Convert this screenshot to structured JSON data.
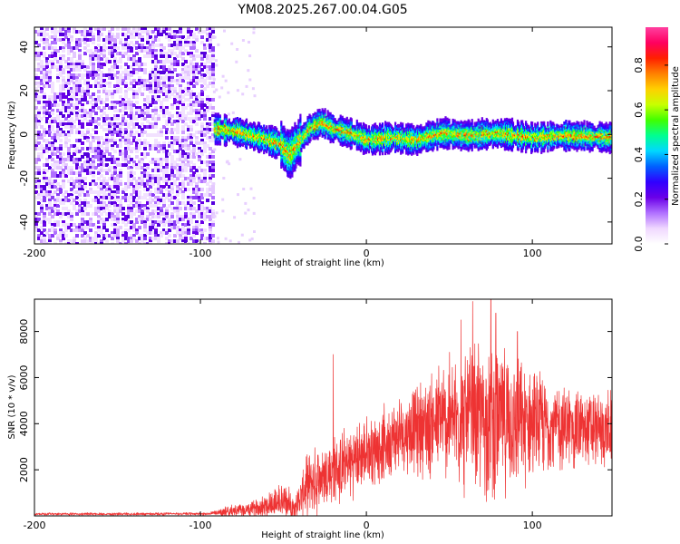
{
  "title": "YM08.2025.267.00.04.G05",
  "chart_data": [
    {
      "type": "heatmap",
      "xlabel": "Height of straight line (km)",
      "ylabel": "Frequency (Hz)",
      "xlim": [
        -200,
        148
      ],
      "ylim": [
        -50,
        49
      ],
      "xticks": [
        -200,
        -100,
        0,
        100
      ],
      "xtick_labels": [
        "-200",
        "-100",
        "0",
        "100"
      ],
      "yticks": [
        -40,
        -20,
        0,
        20,
        40
      ],
      "ytick_labels": [
        "-40",
        "-20",
        "0",
        "20",
        "40"
      ],
      "noise_region": [
        -200,
        -93
      ],
      "ridge": [
        {
          "x": -92,
          "f": 3
        },
        {
          "x": -80,
          "f": 2
        },
        {
          "x": -70,
          "f": 0
        },
        {
          "x": -60,
          "f": -2
        },
        {
          "x": -52,
          "f": -4
        },
        {
          "x": -47,
          "f": -9
        },
        {
          "x": -42,
          "f": -4
        },
        {
          "x": -35,
          "f": 3
        },
        {
          "x": -28,
          "f": 6
        },
        {
          "x": -20,
          "f": 3
        },
        {
          "x": -10,
          "f": 1
        },
        {
          "x": 0,
          "f": -2
        },
        {
          "x": 15,
          "f": -1
        },
        {
          "x": 30,
          "f": -2
        },
        {
          "x": 45,
          "f": 1
        },
        {
          "x": 60,
          "f": 0
        },
        {
          "x": 80,
          "f": 1
        },
        {
          "x": 100,
          "f": -1
        },
        {
          "x": 120,
          "f": 0
        },
        {
          "x": 148,
          "f": -1
        }
      ],
      "colorbar": {
        "label": "Normalized spectral amplitude",
        "range": [
          0.0,
          0.97
        ],
        "ticks": [
          0.0,
          0.2,
          0.4,
          0.6,
          0.8
        ],
        "tick_labels": [
          "0.0",
          "0.2",
          "0.4",
          "0.6",
          "0.8"
        ],
        "colors": [
          "#ffffff",
          "#f0d8ff",
          "#b070ff",
          "#6a00e8",
          "#3000ff",
          "#0060ff",
          "#00d8ff",
          "#00ff90",
          "#40ff00",
          "#c8ff00",
          "#ffd000",
          "#ff8000",
          "#ff2000",
          "#ff0060",
          "#ff40a0"
        ]
      }
    },
    {
      "type": "line",
      "xlabel": "Height of straight line (km)",
      "ylabel": "SNR (10 * v/v)",
      "xlim": [
        -200,
        148
      ],
      "ylim": [
        0,
        9400
      ],
      "xticks": [
        -200,
        -100,
        0,
        100
      ],
      "xtick_labels": [
        "-200",
        "-100",
        "0",
        "100"
      ],
      "yticks": [
        2000,
        4000,
        6000,
        8000
      ],
      "ytick_labels": [
        "2000",
        "4000",
        "6000",
        "8000"
      ],
      "color": "#ee3333",
      "envelope": [
        {
          "x": -200,
          "base": 80,
          "amp": 60
        },
        {
          "x": -95,
          "base": 90,
          "amp": 70
        },
        {
          "x": -85,
          "base": 200,
          "amp": 250
        },
        {
          "x": -70,
          "base": 260,
          "amp": 350
        },
        {
          "x": -60,
          "base": 500,
          "amp": 700
        },
        {
          "x": -50,
          "base": 650,
          "amp": 1000
        },
        {
          "x": -43,
          "base": 350,
          "amp": 600
        },
        {
          "x": -35,
          "base": 1400,
          "amp": 1600
        },
        {
          "x": -20,
          "base": 1900,
          "amp": 1800
        },
        {
          "x": -5,
          "base": 2500,
          "amp": 1800
        },
        {
          "x": 10,
          "base": 3100,
          "amp": 1800
        },
        {
          "x": 25,
          "base": 3700,
          "amp": 2000
        },
        {
          "x": 45,
          "base": 4100,
          "amp": 3000
        },
        {
          "x": 65,
          "base": 4200,
          "amp": 3900
        },
        {
          "x": 80,
          "base": 4100,
          "amp": 3800
        },
        {
          "x": 95,
          "base": 4000,
          "amp": 3000
        },
        {
          "x": 115,
          "base": 3900,
          "amp": 2200
        },
        {
          "x": 135,
          "base": 3700,
          "amp": 2000
        },
        {
          "x": 148,
          "base": 3700,
          "amp": 1900
        }
      ],
      "peaks": [
        {
          "x": -20,
          "v": 7000
        },
        {
          "x": 57,
          "v": 8500
        },
        {
          "x": 64,
          "v": 9300
        },
        {
          "x": 75,
          "v": 9400
        },
        {
          "x": 78,
          "v": 8800
        },
        {
          "x": 91,
          "v": 8000
        }
      ]
    }
  ]
}
